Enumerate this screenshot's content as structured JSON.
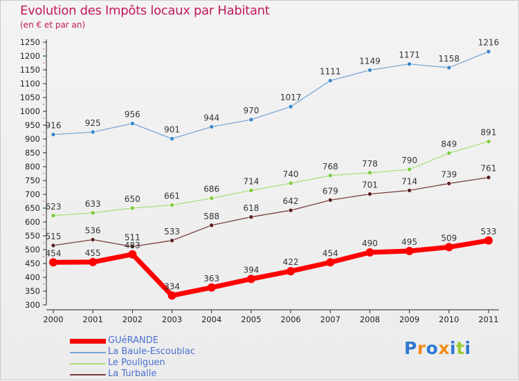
{
  "chart_data": {
    "type": "line",
    "title": "Evolution des Impôts locaux par Habitant",
    "subtitle": "(en € et par an)",
    "categories": [
      "2000",
      "2001",
      "2002",
      "2003",
      "2004",
      "2005",
      "2006",
      "2007",
      "2008",
      "2009",
      "2010",
      "2011"
    ],
    "ylim": [
      300,
      1250
    ],
    "yticks": [
      300,
      350,
      400,
      450,
      500,
      550,
      600,
      650,
      700,
      750,
      800,
      850,
      900,
      950,
      1000,
      1050,
      1100,
      1150,
      1200,
      1250
    ],
    "grid": false,
    "legend_position": "bottom-left",
    "series": [
      {
        "name": "GUéRANDE",
        "color": "#ff0000",
        "point_color": "#ff0000",
        "thick": true,
        "values": [
          454,
          455,
          483,
          334,
          363,
          394,
          422,
          454,
          490,
          495,
          509,
          533
        ]
      },
      {
        "name": "La Baule-Escoublac",
        "color": "#79a7d6",
        "point_color": "#3a86c8",
        "thick": false,
        "values": [
          916,
          925,
          956,
          901,
          944,
          970,
          1017,
          1111,
          1149,
          1171,
          1158,
          1216
        ]
      },
      {
        "name": "Le Pouliguen",
        "color": "#a8e07a",
        "point_color": "#7ccb3c",
        "thick": false,
        "values": [
          623,
          633,
          650,
          661,
          686,
          714,
          740,
          768,
          778,
          790,
          849,
          891
        ]
      },
      {
        "name": "La Turballe",
        "color": "#7a3a3a",
        "point_color": "#5a1f1f",
        "thick": false,
        "values": [
          515,
          536,
          511,
          533,
          588,
          618,
          642,
          679,
          701,
          714,
          739,
          761
        ]
      }
    ]
  },
  "brand": {
    "text": "Proxiti",
    "colors": [
      "#2e78d2",
      "#f08c1a",
      "#2e78d2",
      "#f08c1a",
      "#2e78d2",
      "#99cc33",
      "#2e78d2"
    ]
  }
}
